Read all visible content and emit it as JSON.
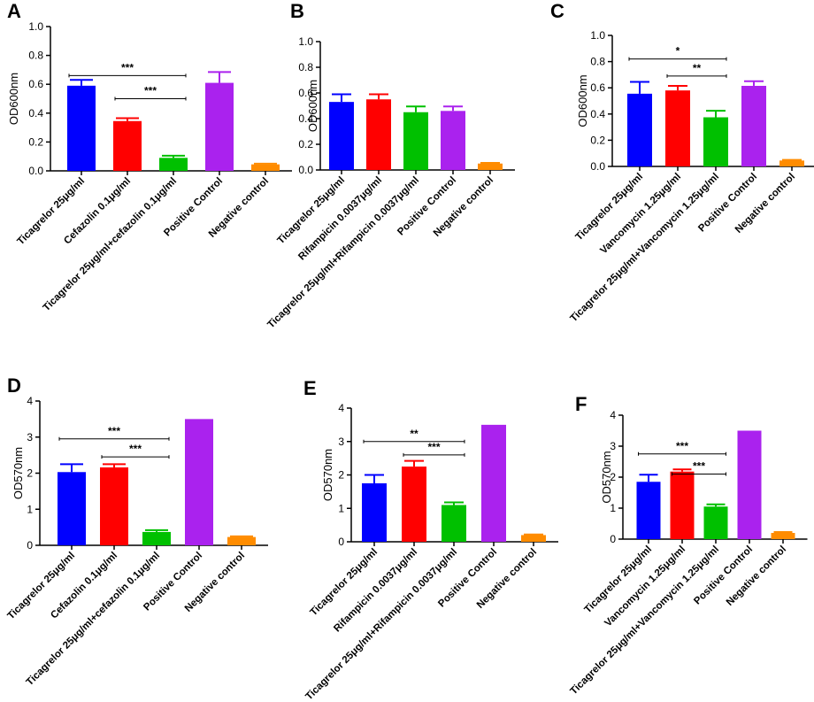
{
  "chart_data": [
    {
      "panel": "A",
      "type": "bar",
      "ylabel": "OD600nm",
      "ylim": [
        0,
        1.0
      ],
      "yticks": [
        "0.0",
        "0.2",
        "0.4",
        "0.6",
        "0.8",
        "1.0"
      ],
      "categories": [
        "Ticagrelor 25μg/ml",
        "Cefazolin 0.1μg/ml",
        "Ticagrelor 25μg/ml+cefazolin 0.1μg/ml",
        "Positive Control",
        "Negative control"
      ],
      "values": [
        0.59,
        0.345,
        0.09,
        0.61,
        0.045
      ],
      "errors": [
        0.04,
        0.02,
        0.015,
        0.075,
        0.005
      ],
      "colors": [
        "#0000ff",
        "#ff0000",
        "#00c000",
        "#aa22ee",
        "#ff8c00"
      ],
      "significance": [
        {
          "from": 0,
          "to": 2,
          "label": "***",
          "y": 0.66
        },
        {
          "from": 1,
          "to": 2,
          "label": "***",
          "y": 0.5
        }
      ]
    },
    {
      "panel": "B",
      "type": "bar",
      "ylabel": "OD600nm",
      "ylim": [
        0,
        1.0
      ],
      "yticks": [
        "0.0",
        "0.2",
        "0.4",
        "0.6",
        "0.8",
        "1.0"
      ],
      "categories": [
        "Ticagrelor 25μg/ml",
        "Rifampicin 0.0037μg/ml",
        "Ticagrelor 25μg/ml+Rifampicin 0.0037μg/ml",
        "Positive Control",
        "Negative control"
      ],
      "values": [
        0.53,
        0.55,
        0.45,
        0.46,
        0.05
      ],
      "errors": [
        0.06,
        0.04,
        0.045,
        0.035,
        0.005
      ],
      "colors": [
        "#0000ff",
        "#ff0000",
        "#00c000",
        "#aa22ee",
        "#ff8c00"
      ],
      "significance": []
    },
    {
      "panel": "C",
      "type": "bar",
      "ylabel": "OD600nm",
      "ylim": [
        0,
        1.0
      ],
      "yticks": [
        "0.0",
        "0.2",
        "0.4",
        "0.6",
        "0.8",
        "1.0"
      ],
      "categories": [
        "Ticagrelor 25μg/ml",
        "Vancomycin 1.25μg/ml",
        "Ticagrelor 25μg/ml+Vancomycin 1.25μg/ml",
        "Positive Control",
        "Negative control"
      ],
      "values": [
        0.555,
        0.58,
        0.375,
        0.615,
        0.045
      ],
      "errors": [
        0.09,
        0.035,
        0.05,
        0.035,
        0.005
      ],
      "colors": [
        "#0000ff",
        "#ff0000",
        "#00c000",
        "#aa22ee",
        "#ff8c00"
      ],
      "significance": [
        {
          "from": 0,
          "to": 2,
          "label": "*",
          "y": 0.82
        },
        {
          "from": 1,
          "to": 2,
          "label": "**",
          "y": 0.69
        }
      ]
    },
    {
      "panel": "D",
      "type": "bar",
      "ylabel": "OD570nm",
      "ylim": [
        0,
        4
      ],
      "yticks": [
        "0",
        "1",
        "2",
        "3",
        "4"
      ],
      "categories": [
        "Ticagrelor 25μg/ml",
        "Cefazolin 0.1μg/ml",
        "Ticagrelor 25μg/ml+cefazolin 0.1μg/ml",
        "Positive Control",
        "Negative control"
      ],
      "values": [
        2.03,
        2.16,
        0.37,
        3.5,
        0.23
      ],
      "errors": [
        0.22,
        0.09,
        0.05,
        0,
        0.02
      ],
      "colors": [
        "#0000ff",
        "#ff0000",
        "#00c000",
        "#aa22ee",
        "#ff8c00"
      ],
      "significance": [
        {
          "from": 0,
          "to": 2,
          "label": "***",
          "y": 2.95
        },
        {
          "from": 1,
          "to": 2,
          "label": "***",
          "y": 2.45
        }
      ]
    },
    {
      "panel": "E",
      "type": "bar",
      "ylabel": "OD570nm",
      "ylim": [
        0,
        4
      ],
      "yticks": [
        "0",
        "1",
        "2",
        "3",
        "4"
      ],
      "categories": [
        "Ticagrelor 25μg/ml",
        "Rifampicin 0.0037μg/ml",
        "Ticagrelor 25μg/ml+Rifampicin 0.0037μg/ml",
        "Positive Control",
        "Negative control"
      ],
      "values": [
        1.75,
        2.25,
        1.1,
        3.5,
        0.2
      ],
      "errors": [
        0.25,
        0.17,
        0.08,
        0,
        0.02
      ],
      "colors": [
        "#0000ff",
        "#ff0000",
        "#00c000",
        "#aa22ee",
        "#ff8c00"
      ],
      "significance": [
        {
          "from": 0,
          "to": 2,
          "label": "**",
          "y": 3.0
        },
        {
          "from": 1,
          "to": 2,
          "label": "***",
          "y": 2.6
        }
      ]
    },
    {
      "panel": "F",
      "type": "bar",
      "ylabel": "OD570nm",
      "ylim": [
        0,
        4
      ],
      "yticks": [
        "0",
        "1",
        "2",
        "3",
        "4"
      ],
      "categories": [
        "Ticagrelor 25μg/ml",
        "Vancomycin 1.25μg/ml",
        "Ticagrelor 25μg/ml+Vancomycin 1.25μg/ml",
        "Positive Control",
        "Negative control"
      ],
      "values": [
        1.85,
        2.18,
        1.05,
        3.5,
        0.2
      ],
      "errors": [
        0.23,
        0.07,
        0.07,
        0,
        0.03
      ],
      "colors": [
        "#0000ff",
        "#ff0000",
        "#00c000",
        "#aa22ee",
        "#ff8c00"
      ],
      "significance": [
        {
          "from": 0,
          "to": 2,
          "label": "***",
          "y": 2.75
        },
        {
          "from": 1,
          "to": 2,
          "label": "***",
          "y": 2.1
        }
      ]
    }
  ]
}
